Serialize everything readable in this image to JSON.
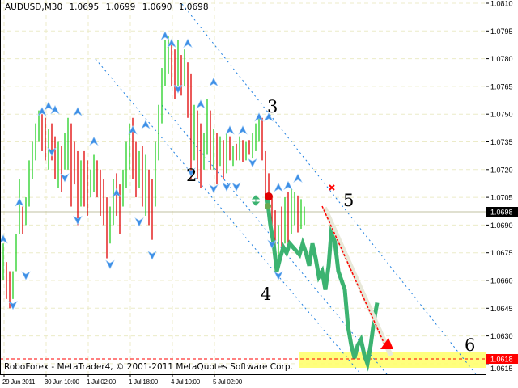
{
  "header": {
    "symbol": "AUDUSD,M30",
    "open": "1.0695",
    "high": "1.0699",
    "low": "1.0690",
    "close": "1.0698"
  },
  "footer": {
    "copyright": "RoboForex - MetaTrader4, © 2001-2011 MetaQuotes Software Corp."
  },
  "colors": {
    "bull_bar": "#22d022",
    "bear_bar": "#e00000",
    "line": "#3cb371",
    "fractal": "#3d8fe6",
    "channel": "#1e7fe0",
    "target_zone": "#ffff66",
    "target_line": "#ff0000"
  },
  "chart_data": {
    "type": "bar",
    "title": "AUDUSD,M30",
    "ylim": [
      1.0612,
      1.0812
    ],
    "grid": true,
    "y_ticks": [
      "1.0810",
      "1.0795",
      "1.0780",
      "1.0765",
      "1.0750",
      "1.0735",
      "1.0720",
      "1.0705",
      "1.0690",
      "1.0675",
      "1.0660",
      "1.0645",
      "1.0630",
      "1.0615"
    ],
    "x_ticks": [
      "29 Jun 2011",
      "30 Jun 10:00",
      "1 Jul 02:00",
      "1 Jul 18:00",
      "4 Jul 10:00",
      "5 Jul 02:00"
    ],
    "current_price": "1.0698",
    "target_price": "1.0618",
    "wave_labels": [
      "2",
      "3",
      "4",
      "5",
      "6"
    ],
    "bars": [
      [
        1.068,
        1.066,
        "u"
      ],
      [
        1.067,
        1.065,
        "d"
      ],
      [
        1.0665,
        1.0645,
        "d"
      ],
      [
        1.0665,
        1.065,
        "u"
      ],
      [
        1.0685,
        1.0665,
        "u"
      ],
      [
        1.0715,
        1.0685,
        "u"
      ],
      [
        1.07,
        1.0685,
        "d"
      ],
      [
        1.0705,
        1.069,
        "u"
      ],
      [
        1.0725,
        1.07,
        "u"
      ],
      [
        1.0735,
        1.0715,
        "u"
      ],
      [
        1.0745,
        1.0725,
        "u"
      ],
      [
        1.0752,
        1.0735,
        "u"
      ],
      [
        1.075,
        1.073,
        "d"
      ],
      [
        1.0748,
        1.0725,
        "d"
      ],
      [
        1.0742,
        1.072,
        "u"
      ],
      [
        1.0745,
        1.0725,
        "d"
      ],
      [
        1.0738,
        1.0715,
        "d"
      ],
      [
        1.0735,
        1.071,
        "u"
      ],
      [
        1.0733,
        1.0708,
        "d"
      ],
      [
        1.074,
        1.072,
        "u"
      ],
      [
        1.0748,
        1.072,
        "u"
      ],
      [
        1.0745,
        1.07,
        "d"
      ],
      [
        1.0735,
        1.0712,
        "d"
      ],
      [
        1.073,
        1.069,
        "d"
      ],
      [
        1.0725,
        1.07,
        "u"
      ],
      [
        1.073,
        1.07,
        "d"
      ],
      [
        1.0725,
        1.0695,
        "d"
      ],
      [
        1.072,
        1.0705,
        "u"
      ],
      [
        1.0728,
        1.0708,
        "u"
      ],
      [
        1.0725,
        1.0705,
        "d"
      ],
      [
        1.072,
        1.0695,
        "d"
      ],
      [
        1.0715,
        1.069,
        "d"
      ],
      [
        1.0705,
        1.0672,
        "d"
      ],
      [
        1.07,
        1.068,
        "u"
      ],
      [
        1.0715,
        1.069,
        "u"
      ],
      [
        1.0718,
        1.0695,
        "d"
      ],
      [
        1.0712,
        1.0685,
        "d"
      ],
      [
        1.072,
        1.07,
        "u"
      ],
      [
        1.0735,
        1.071,
        "u"
      ],
      [
        1.0745,
        1.072,
        "u"
      ],
      [
        1.0748,
        1.0715,
        "d"
      ],
      [
        1.0735,
        1.0705,
        "d"
      ],
      [
        1.073,
        1.071,
        "u"
      ],
      [
        1.0733,
        1.07,
        "d"
      ],
      [
        1.0728,
        1.0695,
        "u"
      ],
      [
        1.072,
        1.069,
        "d"
      ],
      [
        1.0715,
        1.0682,
        "d"
      ],
      [
        1.0735,
        1.07,
        "u"
      ],
      [
        1.0755,
        1.0725,
        "u"
      ],
      [
        1.0775,
        1.0745,
        "u"
      ],
      [
        1.079,
        1.0765,
        "u"
      ],
      [
        1.0792,
        1.0772,
        "u"
      ],
      [
        1.0788,
        1.0765,
        "d"
      ],
      [
        1.0785,
        1.0758,
        "d"
      ],
      [
        1.079,
        1.0765,
        "u"
      ],
      [
        1.0782,
        1.076,
        "d"
      ],
      [
        1.0785,
        1.0765,
        "u"
      ],
      [
        1.0778,
        1.0748,
        "d"
      ],
      [
        1.0772,
        1.0715,
        "d"
      ],
      [
        1.0755,
        1.0725,
        "u"
      ],
      [
        1.0752,
        1.0715,
        "d"
      ],
      [
        1.0745,
        1.071,
        "d"
      ],
      [
        1.074,
        1.072,
        "u"
      ],
      [
        1.0758,
        1.0728,
        "u"
      ],
      [
        1.0752,
        1.072,
        "d"
      ],
      [
        1.0742,
        1.072,
        "u"
      ],
      [
        1.074,
        1.0712,
        "d"
      ],
      [
        1.0738,
        1.0722,
        "u"
      ],
      [
        1.0736,
        1.0715,
        "d"
      ],
      [
        1.074,
        1.0718,
        "u"
      ],
      [
        1.0738,
        1.0725,
        "d"
      ],
      [
        1.0733,
        1.0722,
        "u"
      ],
      [
        1.0734,
        1.0725,
        "d"
      ],
      [
        1.0738,
        1.0725,
        "u"
      ],
      [
        1.0736,
        1.0724,
        "d"
      ],
      [
        1.0735,
        1.0725,
        "u"
      ],
      [
        1.0736,
        1.0728,
        "d"
      ],
      [
        1.074,
        1.0726,
        "u"
      ],
      [
        1.0745,
        1.073,
        "u"
      ],
      [
        1.075,
        1.0735,
        "u"
      ],
      [
        1.0748,
        1.0725,
        "d"
      ],
      [
        1.073,
        1.0705,
        "d"
      ],
      [
        1.0718,
        1.07,
        "d"
      ],
      [
        1.0705,
        1.0685,
        "d"
      ],
      [
        1.0698,
        1.0672,
        "d"
      ],
      [
        1.069,
        1.0668,
        "u"
      ],
      [
        1.07,
        1.0675,
        "d"
      ],
      [
        1.0705,
        1.068,
        "u"
      ],
      [
        1.0708,
        1.0678,
        "d"
      ],
      [
        1.071,
        1.0685,
        "u"
      ],
      [
        1.0708,
        1.069,
        "u"
      ],
      [
        1.0706,
        1.0686,
        "d"
      ],
      [
        1.0704,
        1.0688,
        "u"
      ],
      [
        1.07,
        1.069,
        "u"
      ]
    ],
    "line_start_bar": 82,
    "line_values": [
      1.0705,
      1.069,
      1.068,
      1.0665,
      1.0672,
      1.0678,
      1.0675,
      1.068,
      1.0678,
      1.0676,
      1.0674,
      1.068,
      1.0675,
      1.0668,
      1.068,
      1.0672,
      1.0662,
      1.0665,
      1.0655,
      1.0668,
      1.069,
      1.068,
      1.0665,
      1.066,
      1.0655,
      1.0635,
      1.0625,
      1.0618,
      1.0625,
      1.0628,
      1.062,
      1.0615,
      1.0625,
      1.0638,
      1.0648
    ],
    "fractals_up": [
      [
        0,
        1.0682
      ],
      [
        5,
        1.0702
      ],
      [
        12,
        1.0751
      ],
      [
        14,
        1.0754
      ],
      [
        16,
        1.0752
      ],
      [
        23,
        1.0751
      ],
      [
        28,
        1.0735
      ],
      [
        35,
        1.0707
      ],
      [
        40,
        1.0741
      ],
      [
        44,
        1.0744
      ],
      [
        50,
        1.0792
      ],
      [
        52,
        1.0788
      ],
      [
        57,
        1.0788
      ],
      [
        61,
        1.0755
      ],
      [
        65,
        1.0767
      ],
      [
        70,
        1.0741
      ],
      [
        74,
        1.0741
      ],
      [
        79,
        1.0748
      ],
      [
        82,
        1.0748
      ],
      [
        85,
        1.071
      ],
      [
        88,
        1.0711
      ],
      [
        91,
        1.0715
      ]
    ],
    "fractals_down": [
      [
        3,
        1.0647
      ],
      [
        7,
        1.0663
      ],
      [
        15,
        1.073
      ],
      [
        19,
        1.0716
      ],
      [
        23,
        1.0693
      ],
      [
        33,
        1.0669
      ],
      [
        42,
        1.0692
      ],
      [
        46,
        1.0674
      ],
      [
        54,
        1.0764
      ],
      [
        58,
        1.0719
      ],
      [
        65,
        1.071
      ],
      [
        69,
        1.0711
      ],
      [
        72,
        1.0711
      ],
      [
        77,
        1.0724
      ],
      [
        83,
        1.068
      ],
      [
        85,
        1.0663
      ]
    ]
  }
}
